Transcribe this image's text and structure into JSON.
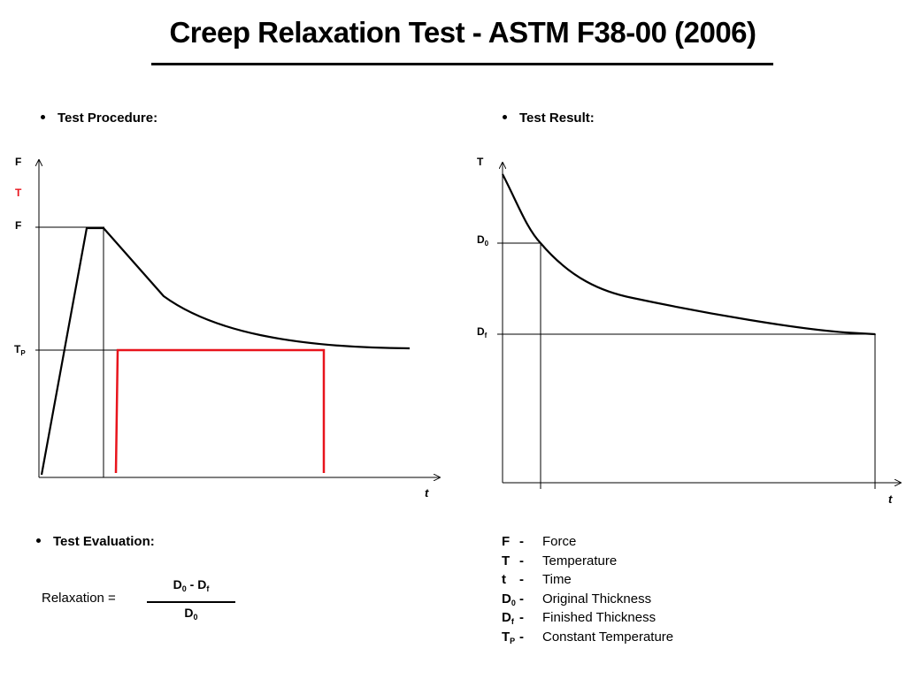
{
  "title": "Creep Relaxation Test - ASTM F38-00 (2006)",
  "sections": {
    "procedure": "Test Procedure:",
    "result": "Test Result:",
    "evaluation": "Test Evaluation:"
  },
  "procedure_chart": {
    "y_labels": {
      "f_top": "F",
      "t_top": "T",
      "f_level": "F",
      "tp_base": "T",
      "tp_sub": "P"
    },
    "x_label": "t",
    "colors": {
      "force_curve": "#000000",
      "temperature_profile": "#e8141c"
    }
  },
  "result_chart": {
    "y_labels": {
      "t_top": "T",
      "d0_base": "D",
      "d0_sub": "0",
      "df_base": "D",
      "df_sub": "f"
    },
    "x_label": "t"
  },
  "formula": {
    "label": "Relaxation =",
    "num_a": "D",
    "num_a_sub": "0",
    "num_minus": " - ",
    "num_b": "D",
    "num_b_sub": "f",
    "den": "D",
    "den_sub": "0"
  },
  "legend": [
    {
      "sym": "F",
      "sub": "",
      "dash": "-",
      "desc": "Force"
    },
    {
      "sym": "T",
      "sub": "",
      "dash": "-",
      "desc": "Temperature"
    },
    {
      "sym": "t",
      "sub": "",
      "dash": "-",
      "desc": "Time"
    },
    {
      "sym": "D",
      "sub": "0",
      "dash": "-",
      "desc": "Original Thickness"
    },
    {
      "sym": "D",
      "sub": "f",
      "dash": "-",
      "desc": "Finished Thickness"
    },
    {
      "sym": "T",
      "sub": "P",
      "dash": "-",
      "desc": "Constant Temperature"
    }
  ]
}
